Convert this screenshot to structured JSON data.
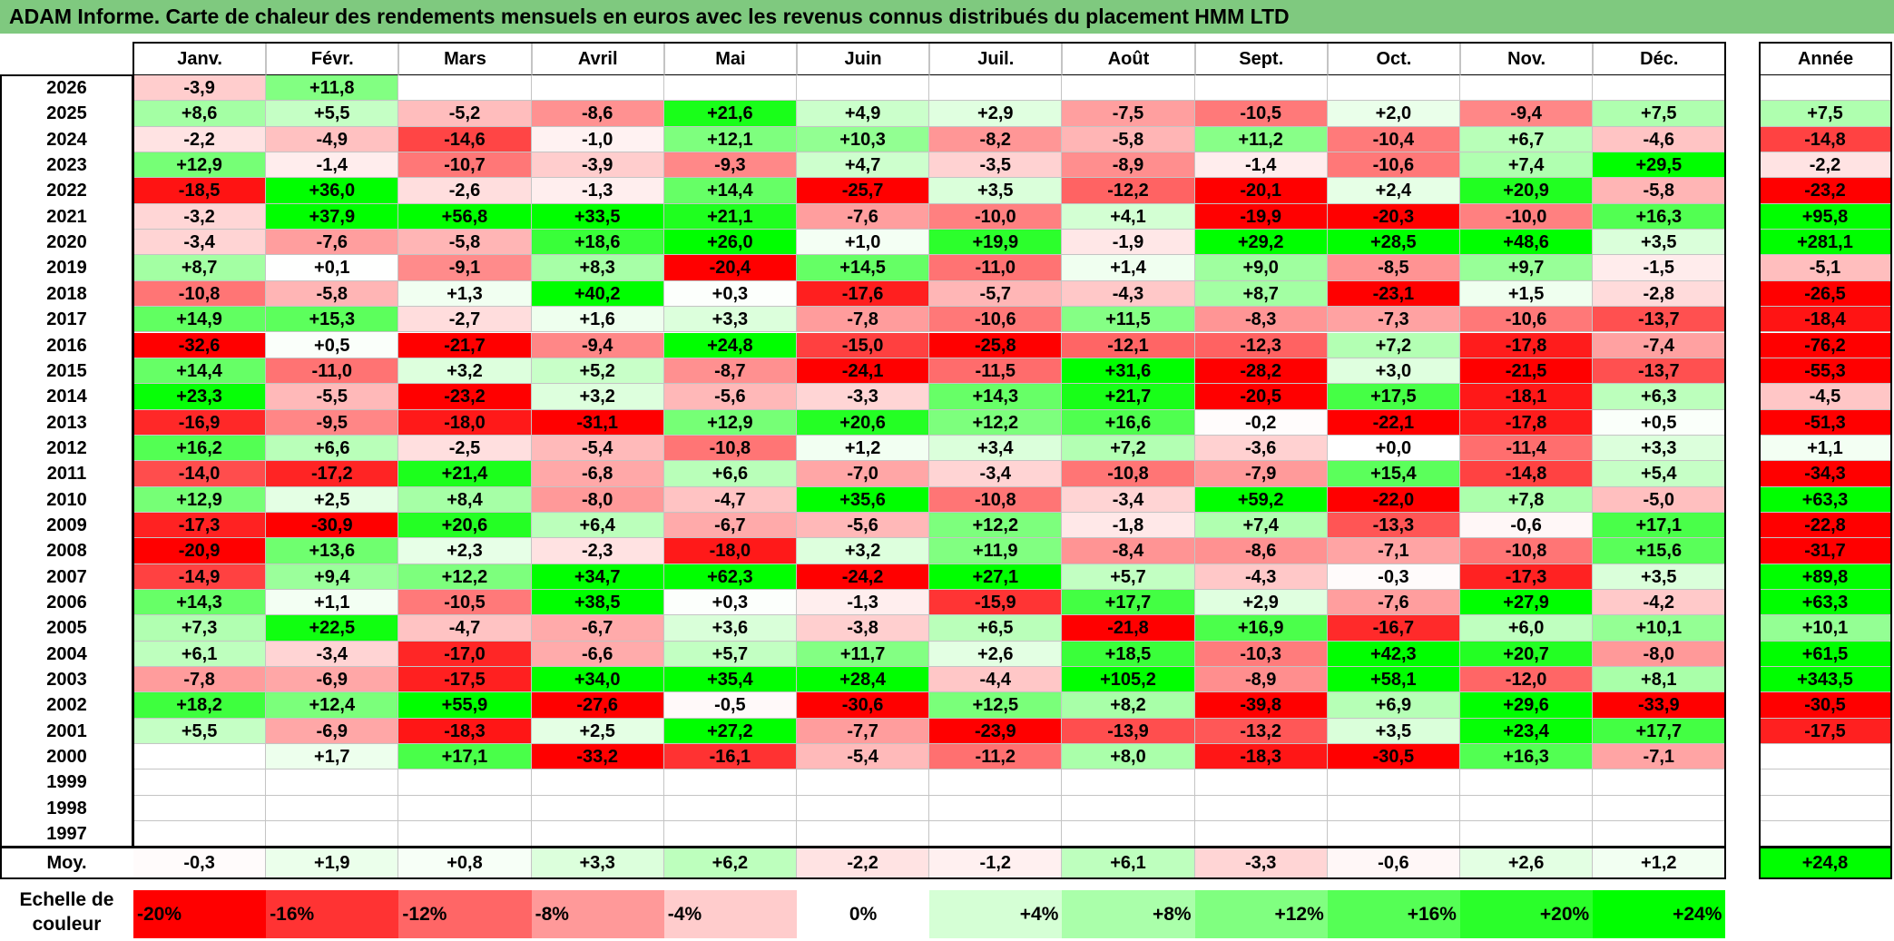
{
  "title": "ADAM Informe. Carte de chaleur des rendements mensuels en euros avec les revenus connus distribués du placement HMM LTD",
  "months": [
    "Janv.",
    "Févr.",
    "Mars",
    "Avril",
    "Mai",
    "Juin",
    "Juil.",
    "Août",
    "Sept.",
    "Oct.",
    "Nov.",
    "Déc."
  ],
  "year_header": "Année",
  "average_label": "Moy.",
  "scale_label_line1": "Echelle de",
  "scale_label_line2": "couleur",
  "colors": {
    "negative": "#ff0000",
    "positive": "#00ff00",
    "neutral": "#ffffff",
    "title_bar": "#7fc97f"
  },
  "chart_data": {
    "type": "heatmap",
    "title": "ADAM Informe. Carte de chaleur des rendements mensuels en euros avec les revenus connus distribués du placement HMM LTD",
    "columns": [
      "Janv.",
      "Févr.",
      "Mars",
      "Avril",
      "Mai",
      "Juin",
      "Juil.",
      "Août",
      "Sept.",
      "Oct.",
      "Nov.",
      "Déc."
    ],
    "rows": [
      {
        "year": "2026",
        "months": [
          "-3,9",
          "+11,8",
          "",
          "",
          "",
          "",
          "",
          "",
          "",
          "",
          "",
          ""
        ],
        "annual": ""
      },
      {
        "year": "2025",
        "months": [
          "+8,6",
          "+5,5",
          "-5,2",
          "-8,6",
          "+21,6",
          "+4,9",
          "+2,9",
          "-7,5",
          "-10,5",
          "+2,0",
          "-9,4",
          "+7,5"
        ],
        "annual": "+7,5"
      },
      {
        "year": "2024",
        "months": [
          "-2,2",
          "-4,9",
          "-14,6",
          "-1,0",
          "+12,1",
          "+10,3",
          "-8,2",
          "-5,8",
          "+11,2",
          "-10,4",
          "+6,7",
          "-4,6"
        ],
        "annual": "-14,8"
      },
      {
        "year": "2023",
        "months": [
          "+12,9",
          "-1,4",
          "-10,7",
          "-3,9",
          "-9,3",
          "+4,7",
          "-3,5",
          "-8,9",
          "-1,4",
          "-10,6",
          "+7,4",
          "+29,5"
        ],
        "annual": "-2,2"
      },
      {
        "year": "2022",
        "months": [
          "-18,5",
          "+36,0",
          "-2,6",
          "-1,3",
          "+14,4",
          "-25,7",
          "+3,5",
          "-12,2",
          "-20,1",
          "+2,4",
          "+20,9",
          "-5,8"
        ],
        "annual": "-23,2"
      },
      {
        "year": "2021",
        "months": [
          "-3,2",
          "+37,9",
          "+56,8",
          "+33,5",
          "+21,1",
          "-7,6",
          "-10,0",
          "+4,1",
          "-19,9",
          "-20,3",
          "-10,0",
          "+16,3"
        ],
        "annual": "+95,8"
      },
      {
        "year": "2020",
        "months": [
          "-3,4",
          "-7,6",
          "-5,8",
          "+18,6",
          "+26,0",
          "+1,0",
          "+19,9",
          "-1,9",
          "+29,2",
          "+28,5",
          "+48,6",
          "+3,5"
        ],
        "annual": "+281,1"
      },
      {
        "year": "2019",
        "months": [
          "+8,7",
          "+0,1",
          "-9,1",
          "+8,3",
          "-20,4",
          "+14,5",
          "-11,0",
          "+1,4",
          "+9,0",
          "-8,5",
          "+9,7",
          "-1,5"
        ],
        "annual": "-5,1"
      },
      {
        "year": "2018",
        "months": [
          "-10,8",
          "-5,8",
          "+1,3",
          "+40,2",
          "+0,3",
          "-17,6",
          "-5,7",
          "-4,3",
          "+8,7",
          "-23,1",
          "+1,5",
          "-2,8"
        ],
        "annual": "-26,5"
      },
      {
        "year": "2017",
        "months": [
          "+14,9",
          "+15,3",
          "-2,7",
          "+1,6",
          "+3,3",
          "-7,8",
          "-10,6",
          "+11,5",
          "-8,3",
          "-7,3",
          "-10,6",
          "-13,7"
        ],
        "annual": "-18,4"
      },
      {
        "year": "2016",
        "months": [
          "-32,6",
          "+0,5",
          "-21,7",
          "-9,4",
          "+24,8",
          "-15,0",
          "-25,8",
          "-12,1",
          "-12,3",
          "+7,2",
          "-17,8",
          "-7,4"
        ],
        "annual": "-76,2"
      },
      {
        "year": "2015",
        "months": [
          "+14,4",
          "-11,0",
          "+3,2",
          "+5,2",
          "-8,7",
          "-24,1",
          "-11,5",
          "+31,6",
          "-28,2",
          "+3,0",
          "-21,5",
          "-13,7"
        ],
        "annual": "-55,3"
      },
      {
        "year": "2014",
        "months": [
          "+23,3",
          "-5,5",
          "-23,2",
          "+3,2",
          "-5,6",
          "-3,3",
          "+14,3",
          "+21,7",
          "-20,5",
          "+17,5",
          "-18,1",
          "+6,3"
        ],
        "annual": "-4,5"
      },
      {
        "year": "2013",
        "months": [
          "-16,9",
          "-9,5",
          "-18,0",
          "-31,1",
          "+12,9",
          "+20,6",
          "+12,2",
          "+16,6",
          "-0,2",
          "-22,1",
          "-17,8",
          "+0,5"
        ],
        "annual": "-51,3"
      },
      {
        "year": "2012",
        "months": [
          "+16,2",
          "+6,6",
          "-2,5",
          "-5,4",
          "-10,8",
          "+1,2",
          "+3,4",
          "+7,2",
          "-3,6",
          "+0,0",
          "-11,4",
          "+3,3"
        ],
        "annual": "+1,1"
      },
      {
        "year": "2011",
        "months": [
          "-14,0",
          "-17,2",
          "+21,4",
          "-6,8",
          "+6,6",
          "-7,0",
          "-3,4",
          "-10,8",
          "-7,9",
          "+15,4",
          "-14,8",
          "+5,4"
        ],
        "annual": "-34,3"
      },
      {
        "year": "2010",
        "months": [
          "+12,9",
          "+2,5",
          "+8,4",
          "-8,0",
          "-4,7",
          "+35,6",
          "-10,8",
          "-3,4",
          "+59,2",
          "-22,0",
          "+7,8",
          "-5,0"
        ],
        "annual": "+63,3"
      },
      {
        "year": "2009",
        "months": [
          "-17,3",
          "-30,9",
          "+20,6",
          "+6,4",
          "-6,7",
          "-5,6",
          "+12,2",
          "-1,8",
          "+7,4",
          "-13,3",
          "-0,6",
          "+17,1"
        ],
        "annual": "-22,8"
      },
      {
        "year": "2008",
        "months": [
          "-20,9",
          "+13,6",
          "+2,3",
          "-2,3",
          "-18,0",
          "+3,2",
          "+11,9",
          "-8,4",
          "-8,6",
          "-7,1",
          "-10,8",
          "+15,6"
        ],
        "annual": "-31,7"
      },
      {
        "year": "2007",
        "months": [
          "-14,9",
          "+9,4",
          "+12,2",
          "+34,7",
          "+62,3",
          "-24,2",
          "+27,1",
          "+5,7",
          "-4,3",
          "-0,3",
          "-17,3",
          "+3,5"
        ],
        "annual": "+89,8"
      },
      {
        "year": "2006",
        "months": [
          "+14,3",
          "+1,1",
          "-10,5",
          "+38,5",
          "+0,3",
          "-1,3",
          "-15,9",
          "+17,7",
          "+2,9",
          "-7,6",
          "+27,9",
          "-4,2"
        ],
        "annual": "+63,3"
      },
      {
        "year": "2005",
        "months": [
          "+7,3",
          "+22,5",
          "-4,7",
          "-6,7",
          "+3,6",
          "-3,8",
          "+6,5",
          "-21,8",
          "+16,9",
          "-16,7",
          "+6,0",
          "+10,1"
        ],
        "annual": "+10,1"
      },
      {
        "year": "2004",
        "months": [
          "+6,1",
          "-3,4",
          "-17,0",
          "-6,6",
          "+5,7",
          "+11,7",
          "+2,6",
          "+18,5",
          "-10,3",
          "+42,3",
          "+20,7",
          "-8,0"
        ],
        "annual": "+61,5"
      },
      {
        "year": "2003",
        "months": [
          "-7,8",
          "-6,9",
          "-17,5",
          "+34,0",
          "+35,4",
          "+28,4",
          "-4,4",
          "+105,2",
          "-8,9",
          "+58,1",
          "-12,0",
          "+8,1"
        ],
        "annual": "+343,5"
      },
      {
        "year": "2002",
        "months": [
          "+18,2",
          "+12,4",
          "+55,9",
          "-27,6",
          "-0,5",
          "-30,6",
          "+12,5",
          "+8,2",
          "-39,8",
          "+6,9",
          "+29,6",
          "-33,9"
        ],
        "annual": "-30,5"
      },
      {
        "year": "2001",
        "months": [
          "+5,5",
          "-6,9",
          "-18,3",
          "+2,5",
          "+27,2",
          "-7,7",
          "-23,9",
          "-13,9",
          "-13,2",
          "+3,5",
          "+23,4",
          "+17,7"
        ],
        "annual": "-17,5"
      },
      {
        "year": "2000",
        "months": [
          "",
          "+1,7",
          "+17,1",
          "-33,2",
          "-16,1",
          "-5,4",
          "-11,2",
          "+8,0",
          "-18,3",
          "-30,5",
          "+16,3",
          "-7,1"
        ],
        "annual": ""
      },
      {
        "year": "1999",
        "months": [
          "",
          "",
          "",
          "",
          "",
          "",
          "",
          "",
          "",
          "",
          "",
          ""
        ],
        "annual": ""
      },
      {
        "year": "1998",
        "months": [
          "",
          "",
          "",
          "",
          "",
          "",
          "",
          "",
          "",
          "",
          "",
          ""
        ],
        "annual": ""
      },
      {
        "year": "1997",
        "months": [
          "",
          "",
          "",
          "",
          "",
          "",
          "",
          "",
          "",
          "",
          "",
          ""
        ],
        "annual": ""
      }
    ],
    "averages": [
      "-0,3",
      "+1,9",
      "+0,8",
      "+3,3",
      "+6,2",
      "-2,2",
      "-1,2",
      "+6,1",
      "-3,3",
      "-0,6",
      "+2,6",
      "+1,2"
    ],
    "average_annual": "+24,8",
    "color_scale": [
      "-20%",
      "-16%",
      "-12%",
      "-8%",
      "-4%",
      "0%",
      "+4%",
      "+8%",
      "+12%",
      "+16%",
      "+20%",
      "+24%"
    ],
    "color_min": -20,
    "color_max": 24
  }
}
